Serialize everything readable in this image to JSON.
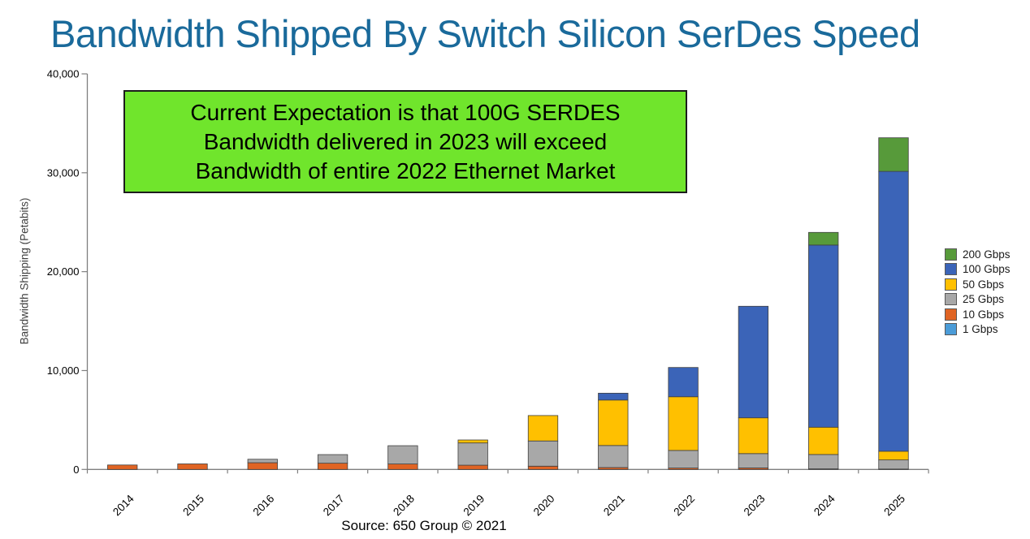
{
  "title": "Bandwidth Shipped By Switch Silicon SerDes Speed",
  "colors": {
    "title": "#1a6a9b",
    "axis": "#7f7f7f",
    "tick_label": "#000000",
    "segment_border": "#404040",
    "annotation_bg": "#70e52c",
    "annotation_border": "#1c1c1c"
  },
  "annotation": {
    "lines": [
      "Current Expectation is that 100G SERDES",
      "Bandwidth delivered in 2023 will exceed",
      "Bandwidth of entire 2022 Ethernet Market"
    ]
  },
  "source": "Source: 650 Group © 2021",
  "chart_data": {
    "type": "bar",
    "stacked": true,
    "title": "Bandwidth Shipped By Switch Silicon SerDes Speed",
    "xlabel": "",
    "ylabel": "Bandwidth Shipping (Petabits)",
    "ylim": [
      0,
      40000
    ],
    "yticks": [
      0,
      10000,
      20000,
      30000,
      40000
    ],
    "grid": false,
    "legend_position": "right",
    "legend_order_top_to_bottom": [
      "200 Gbps",
      "100 Gbps",
      "50 Gbps",
      "25 Gbps",
      "10 Gbps",
      "1 Gbps"
    ],
    "categories": [
      "2014",
      "2015",
      "2016",
      "2017",
      "2018",
      "2019",
      "2020",
      "2021",
      "2022",
      "2023",
      "2024",
      "2025"
    ],
    "series": [
      {
        "name": "1 Gbps",
        "color": "#4b9cd8",
        "values": [
          0,
          0,
          0,
          0,
          0,
          0,
          0,
          0,
          0,
          0,
          0,
          0
        ]
      },
      {
        "name": "10 Gbps",
        "color": "#e06423",
        "values": [
          450,
          560,
          680,
          630,
          550,
          430,
          330,
          190,
          140,
          150,
          60,
          40
        ]
      },
      {
        "name": "25 Gbps",
        "color": "#a8a8a8",
        "values": [
          0,
          0,
          350,
          870,
          1850,
          2250,
          2550,
          2230,
          1780,
          1450,
          1450,
          920
        ]
      },
      {
        "name": "50 Gbps",
        "color": "#ffc000",
        "values": [
          0,
          0,
          0,
          0,
          0,
          300,
          2570,
          4600,
          5430,
          3620,
          2760,
          880
        ]
      },
      {
        "name": "100 Gbps",
        "color": "#3b64b8",
        "values": [
          0,
          0,
          0,
          0,
          0,
          0,
          0,
          690,
          2960,
          11280,
          18420,
          28300
        ]
      },
      {
        "name": "200 Gbps",
        "color": "#579a3a",
        "values": [
          0,
          0,
          0,
          0,
          0,
          0,
          0,
          0,
          0,
          0,
          1280,
          3400
        ]
      }
    ]
  }
}
